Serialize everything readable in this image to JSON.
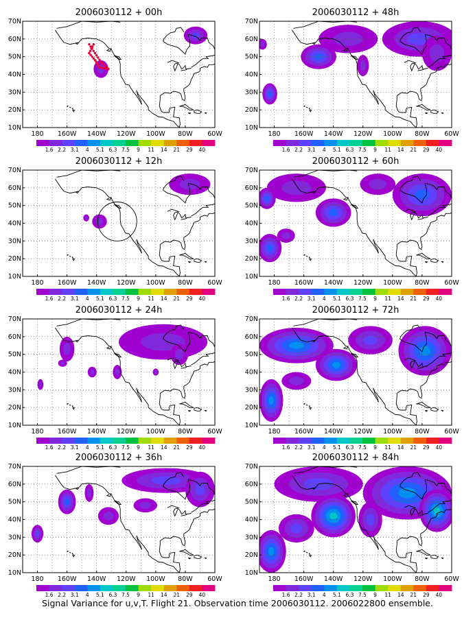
{
  "caption": "Signal Variance for u,v,T. Flight 21. Observation time 2006030112. 2006022800 ensemble.",
  "x_tick_labels": [
    "180",
    "160W",
    "140W",
    "120W",
    "100W",
    "80W",
    "60W"
  ],
  "y_tick_labels": [
    "10N",
    "20N",
    "30N",
    "40N",
    "50N",
    "60N",
    "70N"
  ],
  "colorbar": {
    "labels": [
      "1.6",
      "2.2",
      "3.1",
      "4",
      "5.1",
      "6.3",
      "7.5",
      "9",
      "11",
      "14",
      "21",
      "29",
      "40"
    ],
    "colors": [
      "#a000d0",
      "#8228dc",
      "#6040ff",
      "#2060ff",
      "#0090f0",
      "#00c8c8",
      "#00d090",
      "#00c040",
      "#a0dc00",
      "#e0dc00",
      "#e0a000",
      "#f06000",
      "#f02020",
      "#e00080"
    ]
  },
  "chart_data": [
    {
      "type": "heatmap",
      "title": "2006030112 + 00h",
      "xlim": [
        -190,
        -60
      ],
      "ylim": [
        10,
        70
      ],
      "grid": true,
      "blobs": [
        {
          "lon": -73,
          "lat": 62,
          "rx": 8,
          "ry": 5,
          "level": 2
        },
        {
          "lon": -137,
          "lat": 43,
          "rx": 5,
          "ry": 5,
          "level": 1
        }
      ],
      "observation_track": [
        {
          "lon": -145,
          "lat": 57
        },
        {
          "lon": -141,
          "lat": 52
        },
        {
          "lon": -137,
          "lat": 47
        },
        {
          "lon": -132,
          "lat": 43
        },
        {
          "lon": -138,
          "lat": 44
        },
        {
          "lon": -141,
          "lat": 48
        },
        {
          "lon": -145,
          "lat": 52
        },
        {
          "lon": -142,
          "lat": 57
        }
      ]
    },
    {
      "type": "heatmap",
      "title": "2006030112 + 12h",
      "xlim": [
        -190,
        -60
      ],
      "ylim": [
        10,
        70
      ],
      "grid": true,
      "blobs": [
        {
          "lon": -77,
          "lat": 62,
          "rx": 14,
          "ry": 6,
          "level": 1
        },
        {
          "lon": -138,
          "lat": 41,
          "rx": 5,
          "ry": 4,
          "level": 1
        },
        {
          "lon": -147,
          "lat": 43,
          "rx": 2,
          "ry": 2,
          "level": 1
        }
      ],
      "circle": {
        "lon": -126,
        "lat": 41,
        "r_deg": 10
      }
    },
    {
      "type": "heatmap",
      "title": "2006030112 + 24h",
      "xlim": [
        -190,
        -60
      ],
      "ylim": [
        10,
        70
      ],
      "grid": true,
      "blobs": [
        {
          "lon": -95,
          "lat": 57,
          "rx": 30,
          "ry": 10,
          "level": 1
        },
        {
          "lon": -84,
          "lat": 50,
          "rx": 6,
          "ry": 6,
          "level": 1
        },
        {
          "lon": -160,
          "lat": 53,
          "rx": 5,
          "ry": 7,
          "level": 1
        },
        {
          "lon": -163,
          "lat": 45,
          "rx": 3,
          "ry": 2,
          "level": 1
        },
        {
          "lon": -178,
          "lat": 33,
          "rx": 2,
          "ry": 3,
          "level": 1
        },
        {
          "lon": -143,
          "lat": 40,
          "rx": 3,
          "ry": 3,
          "level": 1
        },
        {
          "lon": -126,
          "lat": 40,
          "rx": 3,
          "ry": 4,
          "level": 1
        },
        {
          "lon": -100,
          "lat": 40,
          "rx": 2,
          "ry": 2,
          "level": 1
        }
      ]
    },
    {
      "type": "heatmap",
      "title": "2006030112 + 36h",
      "xlim": [
        -190,
        -60
      ],
      "ylim": [
        10,
        70
      ],
      "grid": true,
      "blobs": [
        {
          "lon": -93,
          "lat": 62,
          "rx": 30,
          "ry": 7,
          "level": 2
        },
        {
          "lon": -70,
          "lat": 57,
          "rx": 10,
          "ry": 10,
          "level": 2
        },
        {
          "lon": -160,
          "lat": 50,
          "rx": 6,
          "ry": 7,
          "level": 3
        },
        {
          "lon": -145,
          "lat": 55,
          "rx": 3,
          "ry": 5,
          "level": 1
        },
        {
          "lon": -180,
          "lat": 32,
          "rx": 4,
          "ry": 5,
          "level": 2
        },
        {
          "lon": -132,
          "lat": 42,
          "rx": 7,
          "ry": 5,
          "level": 1
        },
        {
          "lon": -107,
          "lat": 48,
          "rx": 8,
          "ry": 4,
          "level": 1
        }
      ]
    },
    {
      "type": "heatmap",
      "title": "2006030112 + 48h",
      "xlim": [
        -190,
        -60
      ],
      "ylim": [
        10,
        70
      ],
      "grid": true,
      "blobs": [
        {
          "lon": -82,
          "lat": 60,
          "rx": 25,
          "ry": 10,
          "level": 2
        },
        {
          "lon": -70,
          "lat": 52,
          "rx": 10,
          "ry": 10,
          "level": 1
        },
        {
          "lon": -130,
          "lat": 60,
          "rx": 20,
          "ry": 8,
          "level": 1
        },
        {
          "lon": -150,
          "lat": 50,
          "rx": 12,
          "ry": 7,
          "level": 3
        },
        {
          "lon": -120,
          "lat": 45,
          "rx": 4,
          "ry": 6,
          "level": 1
        },
        {
          "lon": -183,
          "lat": 29,
          "rx": 5,
          "ry": 6,
          "level": 3
        },
        {
          "lon": -188,
          "lat": 57,
          "rx": 3,
          "ry": 3,
          "level": 1
        }
      ]
    },
    {
      "type": "heatmap",
      "title": "2006030112 + 60h",
      "xlim": [
        -190,
        -60
      ],
      "ylim": [
        10,
        70
      ],
      "grid": true,
      "blobs": [
        {
          "lon": -80,
          "lat": 56,
          "rx": 20,
          "ry": 12,
          "level": 3
        },
        {
          "lon": -110,
          "lat": 62,
          "rx": 12,
          "ry": 6,
          "level": 1
        },
        {
          "lon": -165,
          "lat": 60,
          "rx": 20,
          "ry": 8,
          "level": 1
        },
        {
          "lon": -185,
          "lat": 54,
          "rx": 6,
          "ry": 6,
          "level": 3
        },
        {
          "lon": -140,
          "lat": 46,
          "rx": 12,
          "ry": 8,
          "level": 3
        },
        {
          "lon": -183,
          "lat": 26,
          "rx": 8,
          "ry": 8,
          "level": 3
        },
        {
          "lon": -172,
          "lat": 33,
          "rx": 6,
          "ry": 4,
          "level": 1
        }
      ]
    },
    {
      "type": "heatmap",
      "title": "2006030112 + 72h",
      "xlim": [
        -190,
        -60
      ],
      "ylim": [
        10,
        70
      ],
      "grid": true,
      "blobs": [
        {
          "lon": -78,
          "lat": 52,
          "rx": 18,
          "ry": 14,
          "level": 4
        },
        {
          "lon": -115,
          "lat": 58,
          "rx": 15,
          "ry": 8,
          "level": 2
        },
        {
          "lon": -165,
          "lat": 55,
          "rx": 25,
          "ry": 10,
          "level": 4
        },
        {
          "lon": -138,
          "lat": 44,
          "rx": 14,
          "ry": 9,
          "level": 4
        },
        {
          "lon": -182,
          "lat": 24,
          "rx": 8,
          "ry": 12,
          "level": 4
        },
        {
          "lon": -165,
          "lat": 35,
          "rx": 10,
          "ry": 5,
          "level": 1
        }
      ]
    },
    {
      "type": "heatmap",
      "title": "2006030112 + 84h",
      "xlim": [
        -190,
        -60
      ],
      "ylim": [
        10,
        70
      ],
      "grid": true,
      "blobs": [
        {
          "lon": -90,
          "lat": 55,
          "rx": 30,
          "ry": 15,
          "level": 4
        },
        {
          "lon": -70,
          "lat": 45,
          "rx": 12,
          "ry": 12,
          "level": 5
        },
        {
          "lon": -150,
          "lat": 60,
          "rx": 30,
          "ry": 10,
          "level": 2
        },
        {
          "lon": -140,
          "lat": 42,
          "rx": 15,
          "ry": 12,
          "level": 5
        },
        {
          "lon": -182,
          "lat": 22,
          "rx": 10,
          "ry": 12,
          "level": 4
        },
        {
          "lon": -165,
          "lat": 35,
          "rx": 12,
          "ry": 8,
          "level": 2
        },
        {
          "lon": -115,
          "lat": 40,
          "rx": 8,
          "ry": 10,
          "level": 2
        }
      ]
    }
  ]
}
